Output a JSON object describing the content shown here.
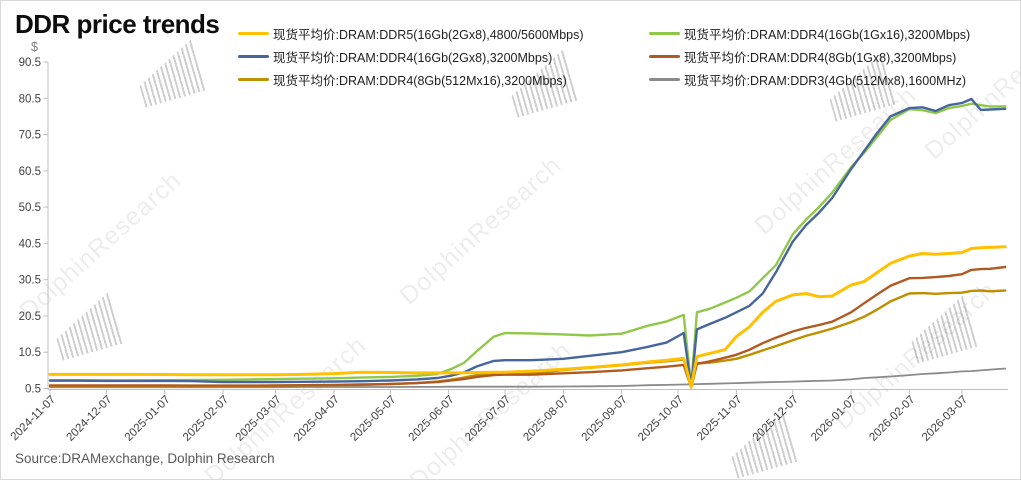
{
  "title": "DDR price trends",
  "source_note": "Source:DRAMexchange, Dolphin Research",
  "watermark_text": "DolphinResearch",
  "axes": {
    "y_unit": "$",
    "y_ticks": [
      "90.5",
      "80.5",
      "70.5",
      "60.5",
      "50.5",
      "40.5",
      "30.5",
      "20.5",
      "10.5",
      "0.5"
    ],
    "x_ticks": [
      "2024-11-07",
      "2024-12-07",
      "2025-01-07",
      "2025-02-07",
      "2025-03-07",
      "2025-04-07",
      "2025-05-07",
      "2025-06-07",
      "2025-07-07",
      "2025-08-07",
      "2025-09-07",
      "2025-10-07",
      "2025-11-07",
      "2025-12-07",
      "2026-01-07",
      "2026-02-07",
      "2026-03-07"
    ]
  },
  "chart_data": {
    "type": "line",
    "title": "DDR price trends",
    "ylabel": "$",
    "ylim": [
      0.5,
      90.5
    ],
    "grid": false,
    "legend_position": "top",
    "x": [
      "2024-11-07",
      "2024-11-21",
      "2024-12-07",
      "2024-12-21",
      "2025-01-07",
      "2025-01-21",
      "2025-02-07",
      "2025-02-21",
      "2025-03-07",
      "2025-03-21",
      "2025-04-07",
      "2025-04-21",
      "2025-05-07",
      "2025-05-21",
      "2025-06-01",
      "2025-06-08",
      "2025-06-15",
      "2025-06-22",
      "2025-07-01",
      "2025-07-07",
      "2025-07-21",
      "2025-08-07",
      "2025-08-21",
      "2025-09-07",
      "2025-09-21",
      "2025-10-01",
      "2025-10-10",
      "2025-10-14",
      "2025-10-17",
      "2025-10-24",
      "2025-11-01",
      "2025-11-07",
      "2025-11-14",
      "2025-11-21",
      "2025-11-28",
      "2025-12-07",
      "2025-12-14",
      "2025-12-21",
      "2025-12-28",
      "2026-01-07",
      "2026-01-14",
      "2026-01-21",
      "2026-01-28",
      "2026-02-07",
      "2026-02-14",
      "2026-02-21",
      "2026-02-28",
      "2026-03-07",
      "2026-03-12",
      "2026-03-17",
      "2026-03-22",
      "2026-03-30"
    ],
    "series": [
      {
        "name": "现货平均价:DRAM:DDR5(16Gb(2Gx8),4800/5600Mbps)",
        "color": "#FFC000",
        "values": [
          4.4,
          4.4,
          4.4,
          4.4,
          4.35,
          4.3,
          4.3,
          4.3,
          4.3,
          4.4,
          4.6,
          5.0,
          4.9,
          4.8,
          4.8,
          4.8,
          4.8,
          4.9,
          5.0,
          5.0,
          5.3,
          5.8,
          6.3,
          7.0,
          7.8,
          8.3,
          8.8,
          0.9,
          9.3,
          10.2,
          11.2,
          14.8,
          17.5,
          21.5,
          24.5,
          26.3,
          26.7,
          25.8,
          26.0,
          29.0,
          30.0,
          32.5,
          35.0,
          37.0,
          37.7,
          37.5,
          37.7,
          38.0,
          39.1,
          39.3,
          39.4,
          39.6
        ]
      },
      {
        "name": "现货平均价:DRAM:DDR4(16Gb(2Gx8),3200Mbps)",
        "color": "#46659B",
        "values": [
          2.65,
          2.65,
          2.6,
          2.6,
          2.6,
          2.55,
          2.3,
          2.3,
          2.3,
          2.35,
          2.4,
          2.5,
          2.7,
          3.0,
          3.4,
          4.0,
          4.9,
          6.6,
          8.1,
          8.3,
          8.3,
          8.7,
          9.5,
          10.5,
          12.0,
          13.2,
          15.8,
          0.9,
          16.8,
          18.3,
          20.0,
          21.5,
          23.3,
          26.7,
          32.5,
          41.0,
          45.5,
          49.0,
          53.0,
          61.0,
          66.0,
          71.0,
          75.5,
          77.8,
          78.0,
          77.0,
          78.6,
          79.2,
          80.3,
          77.3,
          77.4,
          77.6
        ]
      },
      {
        "name": "现货平均价:DRAM:DDR4(8Gb(512Mx16),3200Mbps)",
        "color": "#BF8F00",
        "values": [
          1.15,
          1.15,
          1.15,
          1.15,
          1.2,
          1.2,
          1.2,
          1.25,
          1.3,
          1.35,
          1.4,
          1.5,
          1.7,
          2.0,
          2.4,
          2.9,
          3.5,
          4.2,
          4.6,
          4.6,
          4.6,
          5.6,
          6.2,
          6.9,
          7.6,
          8.0,
          8.5,
          0.8,
          7.4,
          7.6,
          8.2,
          8.7,
          9.8,
          11.0,
          12.2,
          13.8,
          15.0,
          16.0,
          17.0,
          18.8,
          20.3,
          22.3,
          24.5,
          26.7,
          26.8,
          26.6,
          26.8,
          26.9,
          27.4,
          27.5,
          27.3,
          27.5
        ]
      },
      {
        "name": "现货平均价:DRAM:DDR4(16Gb(1Gx16),3200Mbps)",
        "color": "#8FC849",
        "values": [
          2.8,
          2.8,
          2.75,
          2.75,
          2.8,
          2.85,
          2.9,
          3.0,
          3.1,
          3.2,
          3.3,
          3.5,
          3.7,
          4.0,
          4.5,
          5.8,
          7.5,
          10.8,
          14.8,
          15.8,
          15.7,
          15.4,
          15.1,
          15.6,
          17.8,
          19.0,
          20.8,
          0.9,
          21.5,
          22.5,
          24.2,
          25.5,
          27.3,
          30.9,
          34.5,
          43.0,
          47.0,
          50.5,
          54.5,
          61.5,
          65.5,
          70.0,
          74.5,
          77.5,
          77.2,
          76.4,
          77.8,
          78.4,
          79.0,
          78.6,
          78.2,
          78.3
        ]
      },
      {
        "name": "现货平均价:DRAM:DDR4(8Gb(1Gx8),3200Mbps)",
        "color": "#B05A21",
        "values": [
          1.35,
          1.35,
          1.35,
          1.35,
          1.35,
          1.3,
          1.3,
          1.3,
          1.35,
          1.4,
          1.5,
          1.6,
          1.75,
          2.0,
          2.3,
          2.7,
          3.1,
          3.7,
          4.2,
          4.3,
          4.3,
          4.7,
          5.0,
          5.5,
          6.1,
          6.5,
          7.0,
          0.8,
          7.3,
          8.0,
          9.0,
          9.8,
          11.2,
          13.0,
          14.5,
          16.2,
          17.2,
          18.0,
          18.9,
          21.5,
          24.0,
          26.5,
          28.8,
          30.9,
          31.0,
          31.2,
          31.5,
          32.0,
          33.2,
          33.4,
          33.5,
          34.0
        ]
      },
      {
        "name": "现货平均价:DRAM:DDR3(4Gb(512Mx8),1600MHz)",
        "color": "#8A8A8A",
        "values": [
          0.85,
          0.85,
          0.85,
          0.85,
          0.85,
          0.85,
          0.85,
          0.85,
          0.85,
          0.9,
          0.9,
          0.9,
          0.9,
          0.95,
          0.95,
          1.0,
          1.0,
          1.0,
          1.0,
          1.0,
          1.0,
          1.05,
          1.1,
          1.2,
          1.4,
          1.5,
          1.6,
          1.65,
          1.7,
          1.8,
          1.9,
          2.0,
          2.1,
          2.2,
          2.3,
          2.4,
          2.5,
          2.6,
          2.7,
          3.0,
          3.4,
          3.6,
          3.8,
          4.2,
          4.5,
          4.7,
          4.9,
          5.2,
          5.3,
          5.5,
          5.7,
          6.0
        ]
      }
    ]
  }
}
